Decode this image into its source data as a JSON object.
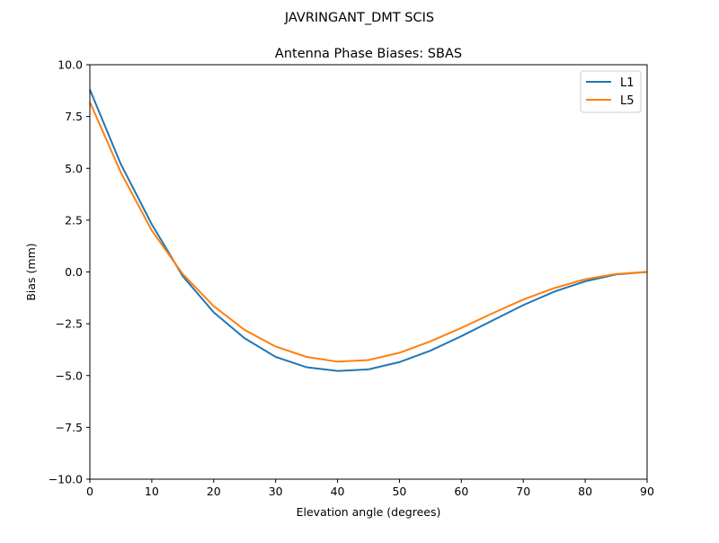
{
  "suptitle": "JAVRINGANT_DMT  SCIS",
  "chart_data": {
    "type": "line",
    "title": "Antenna Phase Biases: SBAS",
    "xlabel": "Elevation angle (degrees)",
    "ylabel": "Bias (mm)",
    "xlim": [
      0,
      90
    ],
    "ylim": [
      -10,
      10
    ],
    "xticks": [
      0,
      10,
      20,
      30,
      40,
      50,
      60,
      70,
      80,
      90
    ],
    "xtick_labels": [
      "0",
      "10",
      "20",
      "30",
      "40",
      "50",
      "60",
      "70",
      "80",
      "90"
    ],
    "yticks": [
      -10,
      -7.5,
      -5,
      -2.5,
      0,
      2.5,
      5,
      7.5,
      10
    ],
    "ytick_labels": [
      "−10.0",
      "−7.5",
      "−5.0",
      "−2.5",
      "0.0",
      "2.5",
      "5.0",
      "7.5",
      "10.0"
    ],
    "grid": false,
    "legend_position": "top-right",
    "x": [
      0,
      5,
      10,
      15,
      20,
      25,
      30,
      35,
      40,
      45,
      50,
      55,
      60,
      65,
      70,
      75,
      80,
      85,
      90
    ],
    "series": [
      {
        "name": "L1",
        "color": "#1f77b4",
        "values": [
          8.8,
          5.2,
          2.3,
          -0.2,
          -1.95,
          -3.2,
          -4.1,
          -4.6,
          -4.78,
          -4.7,
          -4.35,
          -3.8,
          -3.1,
          -2.35,
          -1.6,
          -0.95,
          -0.45,
          -0.12,
          0.0
        ]
      },
      {
        "name": "L5",
        "color": "#ff7f0e",
        "values": [
          8.2,
          4.8,
          2.0,
          -0.1,
          -1.65,
          -2.8,
          -3.6,
          -4.1,
          -4.33,
          -4.25,
          -3.9,
          -3.35,
          -2.7,
          -2.0,
          -1.33,
          -0.78,
          -0.35,
          -0.1,
          0.0
        ]
      }
    ]
  }
}
